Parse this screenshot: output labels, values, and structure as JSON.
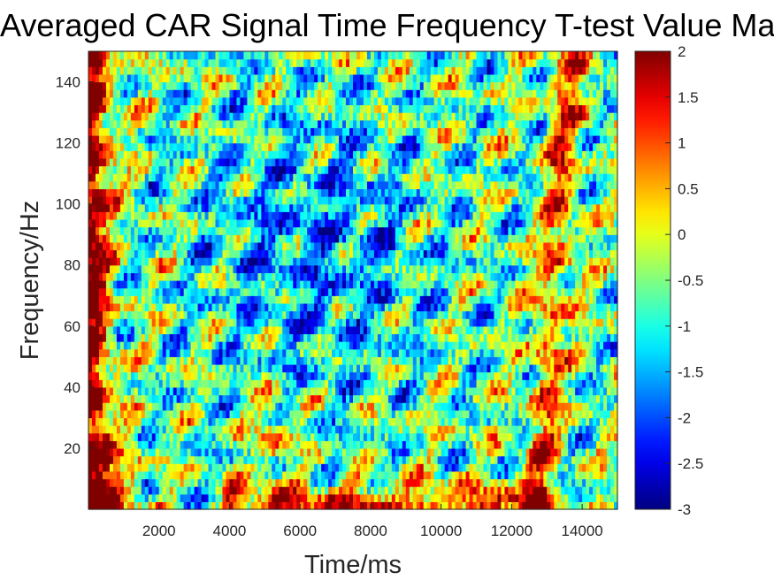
{
  "chart_data": {
    "type": "heatmap",
    "title": "Averaged CAR Signal Time Frequency T-test Value Map",
    "xlabel": "Time/ms",
    "ylabel": "Frequency/Hz",
    "xlim": [
      0,
      15000
    ],
    "ylim": [
      0,
      150
    ],
    "x_ticks": [
      2000,
      4000,
      6000,
      8000,
      10000,
      12000,
      14000
    ],
    "x_tick_labels": [
      "2000",
      "4000",
      "6000",
      "8000",
      "10000",
      "12000",
      "14000"
    ],
    "y_ticks": [
      20,
      40,
      60,
      80,
      100,
      120,
      140
    ],
    "y_tick_labels": [
      "20",
      "40",
      "60",
      "80",
      "100",
      "120",
      "140"
    ],
    "colormap": "jet",
    "clim": [
      -3,
      2
    ],
    "colorbar_ticks": [
      2,
      1.5,
      1,
      0.5,
      0,
      -0.5,
      -1,
      -1.5,
      -2,
      -2.5,
      -3
    ],
    "colorbar_tick_labels": [
      "2",
      "1.5",
      "1",
      "0.5",
      "0",
      "-0.5",
      "-1",
      "-1.5",
      "-2",
      "-2.5",
      "-3"
    ],
    "grid": false,
    "value_pattern": [
      {
        "region": "left edge (approx. 0-800 ms), all frequencies",
        "approx_value": 2
      },
      {
        "region": "bottom band (approx. 0-10 Hz), 4000-13000 ms",
        "approx_value": 2
      },
      {
        "region": "central area (approx. 2000-10000 ms, 40-140 Hz)",
        "approx_value": -1.5
      },
      {
        "region": "right side (approx. 12500-14500 ms), vertical streaks",
        "approx_value": 1.5
      },
      {
        "region": "background",
        "approx_value": -0.5
      }
    ]
  }
}
